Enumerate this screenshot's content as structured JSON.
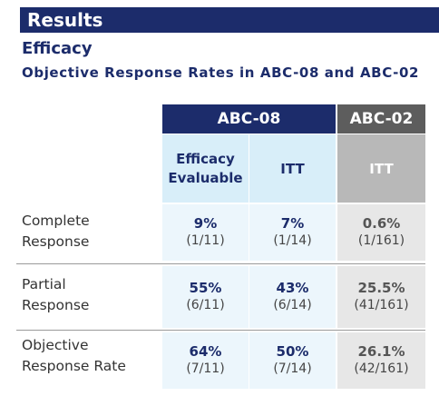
{
  "banner": "Results",
  "section": "Efficacy",
  "subtitle": "Objective Response Rates in ABC-08 and ABC-02",
  "table": {
    "group_a": "ABC-08",
    "group_b": "ABC-02",
    "sub_a1": [
      "Efficacy",
      "Evaluable"
    ],
    "sub_a2": "ITT",
    "sub_b1": "ITT",
    "rows": [
      {
        "label": [
          "Complete",
          "Response"
        ],
        "cells": [
          {
            "pct": "9%",
            "frac": "(1/11)"
          },
          {
            "pct": "7%",
            "frac": "(1/14)"
          },
          {
            "pct": "0.6%",
            "frac": "(1/161)"
          }
        ]
      },
      {
        "label": [
          "Partial",
          "Response"
        ],
        "cells": [
          {
            "pct": "55%",
            "frac": "(6/11)"
          },
          {
            "pct": "43%",
            "frac": "(6/14)"
          },
          {
            "pct": "25.5%",
            "frac": "(41/161)"
          }
        ]
      },
      {
        "label": [
          "Objective",
          "Response Rate"
        ],
        "cells": [
          {
            "pct": "64%",
            "frac": "(7/11)"
          },
          {
            "pct": "50%",
            "frac": "(7/14)"
          },
          {
            "pct": "26.1%",
            "frac": "(42/161)"
          }
        ]
      }
    ]
  }
}
